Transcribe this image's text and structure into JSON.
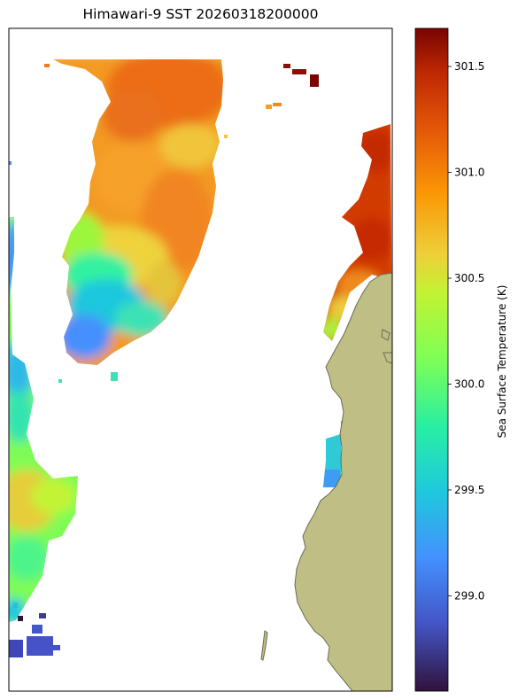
{
  "title": "Himawari-9 SST 20260318200000",
  "chart_data": {
    "type": "heatmap",
    "title": "Himawari-9 SST 20260318200000",
    "colormap": "turbo",
    "colorbar": {
      "label": "Sea Surface Temperature (K)",
      "min": 298.55,
      "max": 301.68,
      "ticks": [
        299.0,
        299.5,
        300.0,
        300.5,
        301.0,
        301.5
      ],
      "tick_labels": [
        "299.0",
        "299.5",
        "300.0",
        "300.5",
        "301.0",
        "301.5"
      ]
    },
    "land_color": "#bfbf85",
    "missing_value_color": "#ffffff",
    "regions": [
      {
        "label": "north-central cloud-free patch",
        "min_k": 299.0,
        "max_k": 301.2
      },
      {
        "label": "eastern coastal strip",
        "min_k": 299.3,
        "max_k": 301.6
      },
      {
        "label": "western edge patch",
        "min_k": 298.7,
        "max_k": 300.4
      }
    ]
  }
}
